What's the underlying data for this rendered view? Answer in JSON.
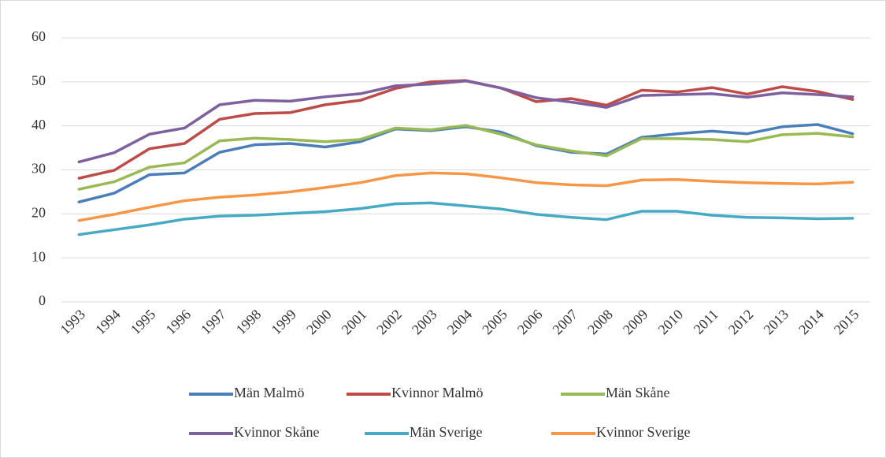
{
  "chart_data": {
    "type": "line",
    "categories": [
      "1993",
      "1994",
      "1995",
      "1996",
      "1997",
      "1998",
      "1999",
      "2000",
      "2001",
      "2002",
      "2003",
      "2004",
      "2005",
      "2006",
      "2007",
      "2008",
      "2009",
      "2010",
      "2011",
      "2012",
      "2013",
      "2014",
      "2015"
    ],
    "series": [
      {
        "name": "Män Malmö",
        "color": "#4a7ebb",
        "values": [
          22.7,
          24.7,
          28.9,
          29.3,
          34,
          35.7,
          36,
          35.2,
          36.4,
          39.3,
          38.9,
          39.8,
          38.6,
          35.5,
          34,
          33.6,
          37.4,
          38.2,
          38.8,
          38.2,
          39.8,
          40.3,
          38.2
        ]
      },
      {
        "name": "Kvinnor Malmö",
        "color": "#be4b48",
        "values": [
          28.1,
          29.9,
          34.8,
          36,
          41.5,
          42.8,
          43,
          44.8,
          45.8,
          48.5,
          50,
          50.3,
          48.6,
          45.5,
          46.2,
          44.7,
          48.1,
          47.7,
          48.7,
          47.2,
          48.9,
          47.8,
          46
        ]
      },
      {
        "name": "Män Skåne",
        "color": "#98b954",
        "values": [
          25.6,
          27.3,
          30.6,
          31.6,
          36.6,
          37.2,
          36.9,
          36.4,
          36.9,
          39.5,
          39.1,
          40.1,
          38.1,
          35.7,
          34.3,
          33.2,
          37.1,
          37.1,
          36.9,
          36.4,
          38,
          38.3,
          37.5
        ]
      },
      {
        "name": "Kvinnor Skåne",
        "color": "#7d60a0",
        "values": [
          31.8,
          33.9,
          38.1,
          39.5,
          44.8,
          45.8,
          45.6,
          46.6,
          47.3,
          49.1,
          49.5,
          50.2,
          48.6,
          46.4,
          45.4,
          44.2,
          46.9,
          47.1,
          47.3,
          46.5,
          47.5,
          47.1,
          46.6
        ]
      },
      {
        "name": "Män Sverige",
        "color": "#46aac5",
        "values": [
          15.3,
          16.4,
          17.5,
          18.8,
          19.5,
          19.7,
          20.1,
          20.5,
          21.2,
          22.3,
          22.5,
          21.8,
          21.1,
          19.9,
          19.2,
          18.7,
          20.6,
          20.6,
          19.7,
          19.2,
          19.1,
          18.9,
          19.0
        ]
      },
      {
        "name": "Kvinnor Sverige",
        "color": "#f79646",
        "values": [
          18.5,
          19.9,
          21.5,
          23,
          23.8,
          24.3,
          25,
          26,
          27.1,
          28.7,
          29.3,
          29.1,
          28.2,
          27.1,
          26.6,
          26.4,
          27.7,
          27.8,
          27.4,
          27.1,
          26.9,
          26.8,
          27.2
        ]
      }
    ],
    "ylim": [
      0,
      60
    ],
    "yticks": [
      0,
      10,
      20,
      30,
      40,
      50,
      60
    ],
    "grid": true,
    "legend": "bottom"
  }
}
